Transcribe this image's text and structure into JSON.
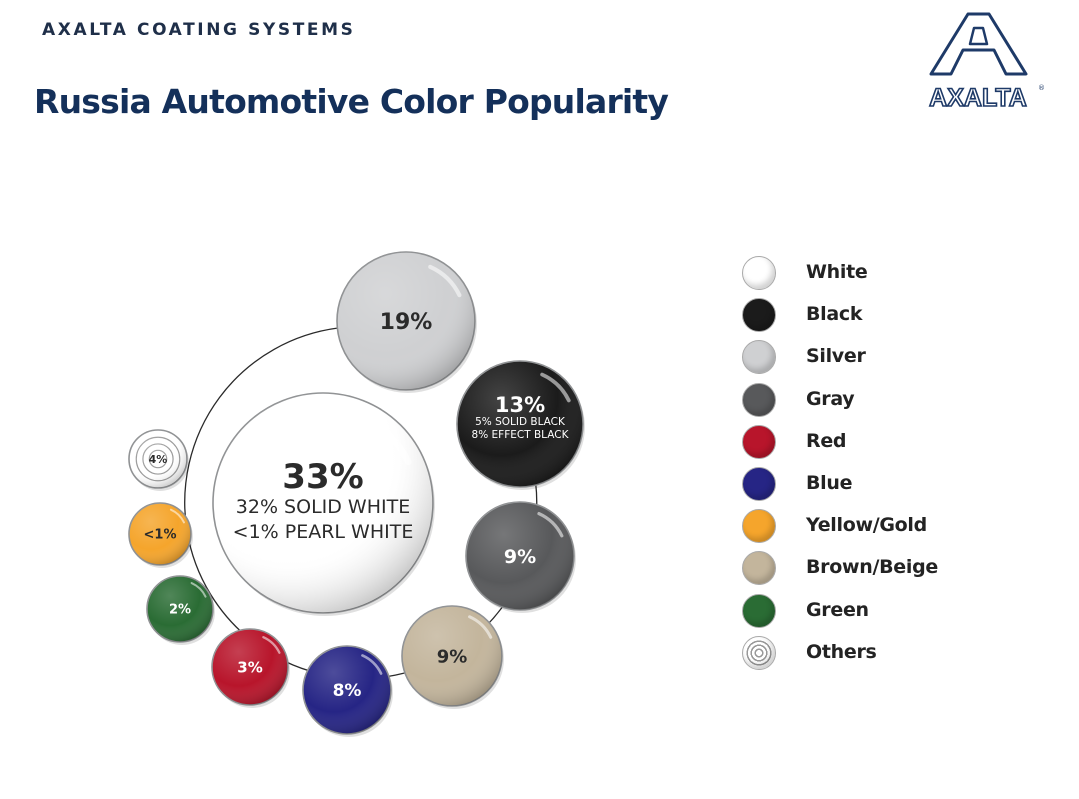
{
  "header": {
    "company": "AXALTA COATING SYSTEMS",
    "title": "Russia Automotive Color Popularity",
    "logo_text": "AXALTA",
    "logo_reg": "®"
  },
  "colors": {
    "White": "#ffffff",
    "Black": "#1b1b1b",
    "Silver": "#cfd0d2",
    "Gray": "#58595b",
    "Red": "#b8152b",
    "Blue": "#262585",
    "Yellow/Gold": "#f5a52c",
    "Brown/Beige": "#c3b59c",
    "Green": "#2a6c34",
    "Others": "#ffffff"
  },
  "chart_data": {
    "type": "bubble",
    "title": "Russia Automotive Color Popularity",
    "items": [
      {
        "name": "White",
        "value": 33,
        "label": "33%",
        "sublabels": [
          "32% SOLID WHITE",
          "<1% PEARL WHITE"
        ]
      },
      {
        "name": "Silver",
        "value": 19,
        "label": "19%",
        "sublabels": []
      },
      {
        "name": "Black",
        "value": 13,
        "label": "13%",
        "sublabels": [
          "5% SOLID BLACK",
          "8% EFFECT BLACK"
        ]
      },
      {
        "name": "Gray",
        "value": 9,
        "label": "9%",
        "sublabels": []
      },
      {
        "name": "Brown/Beige",
        "value": 9,
        "label": "9%",
        "sublabels": []
      },
      {
        "name": "Blue",
        "value": 8,
        "label": "8%",
        "sublabels": []
      },
      {
        "name": "Red",
        "value": 3,
        "label": "3%",
        "sublabels": []
      },
      {
        "name": "Green",
        "value": 2,
        "label": "2%",
        "sublabels": []
      },
      {
        "name": "Yellow/Gold",
        "value": 1,
        "label": "<1%",
        "sublabels": []
      },
      {
        "name": "Others",
        "value": 4,
        "label": "4%",
        "sublabels": []
      }
    ],
    "legend": [
      "White",
      "Black",
      "Silver",
      "Gray",
      "Red",
      "Blue",
      "Yellow/Gold",
      "Brown/Beige",
      "Green",
      "Others"
    ],
    "legend_position": "right"
  }
}
